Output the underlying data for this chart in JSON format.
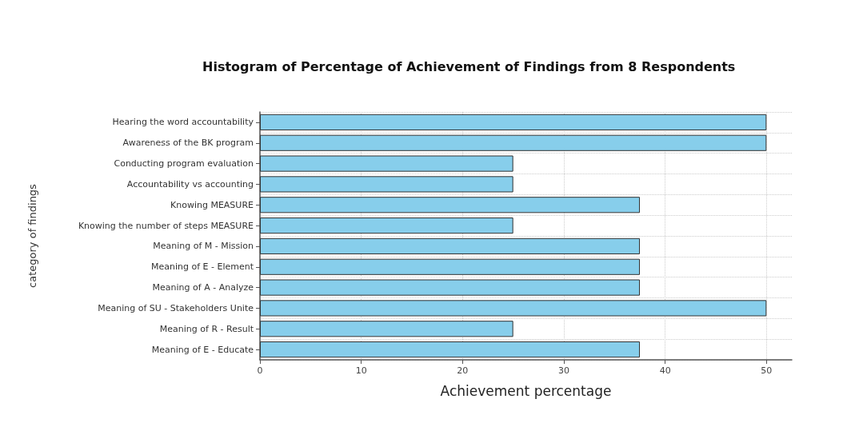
{
  "chart_data": {
    "type": "bar",
    "orientation": "horizontal",
    "title": "Histogram of Percentage of Achievement of Findings from 8 Respondents",
    "xlabel": "Achievement percentage",
    "ylabel": "category of findings",
    "categories": [
      "Hearing the word accountability",
      "Awareness of the BK program",
      "Conducting program evaluation",
      "Accountability vs accounting",
      "Knowing MEASURE",
      "Knowing the number of steps MEASURE",
      "Meaning of M - Mission",
      "Meaning of E - Element",
      "Meaning of A - Analyze",
      "Meaning of SU - Stakeholders Unite",
      "Meaning of R - Result",
      "Meaning of E - Educate"
    ],
    "values": [
      50,
      50,
      25,
      25,
      37.5,
      25,
      37.5,
      37.5,
      37.5,
      50,
      25,
      37.5
    ],
    "color": "#87ceeb",
    "xlim": [
      0,
      52.5
    ],
    "xticks": [
      0,
      10,
      20,
      30,
      40,
      50
    ],
    "grid": true
  }
}
